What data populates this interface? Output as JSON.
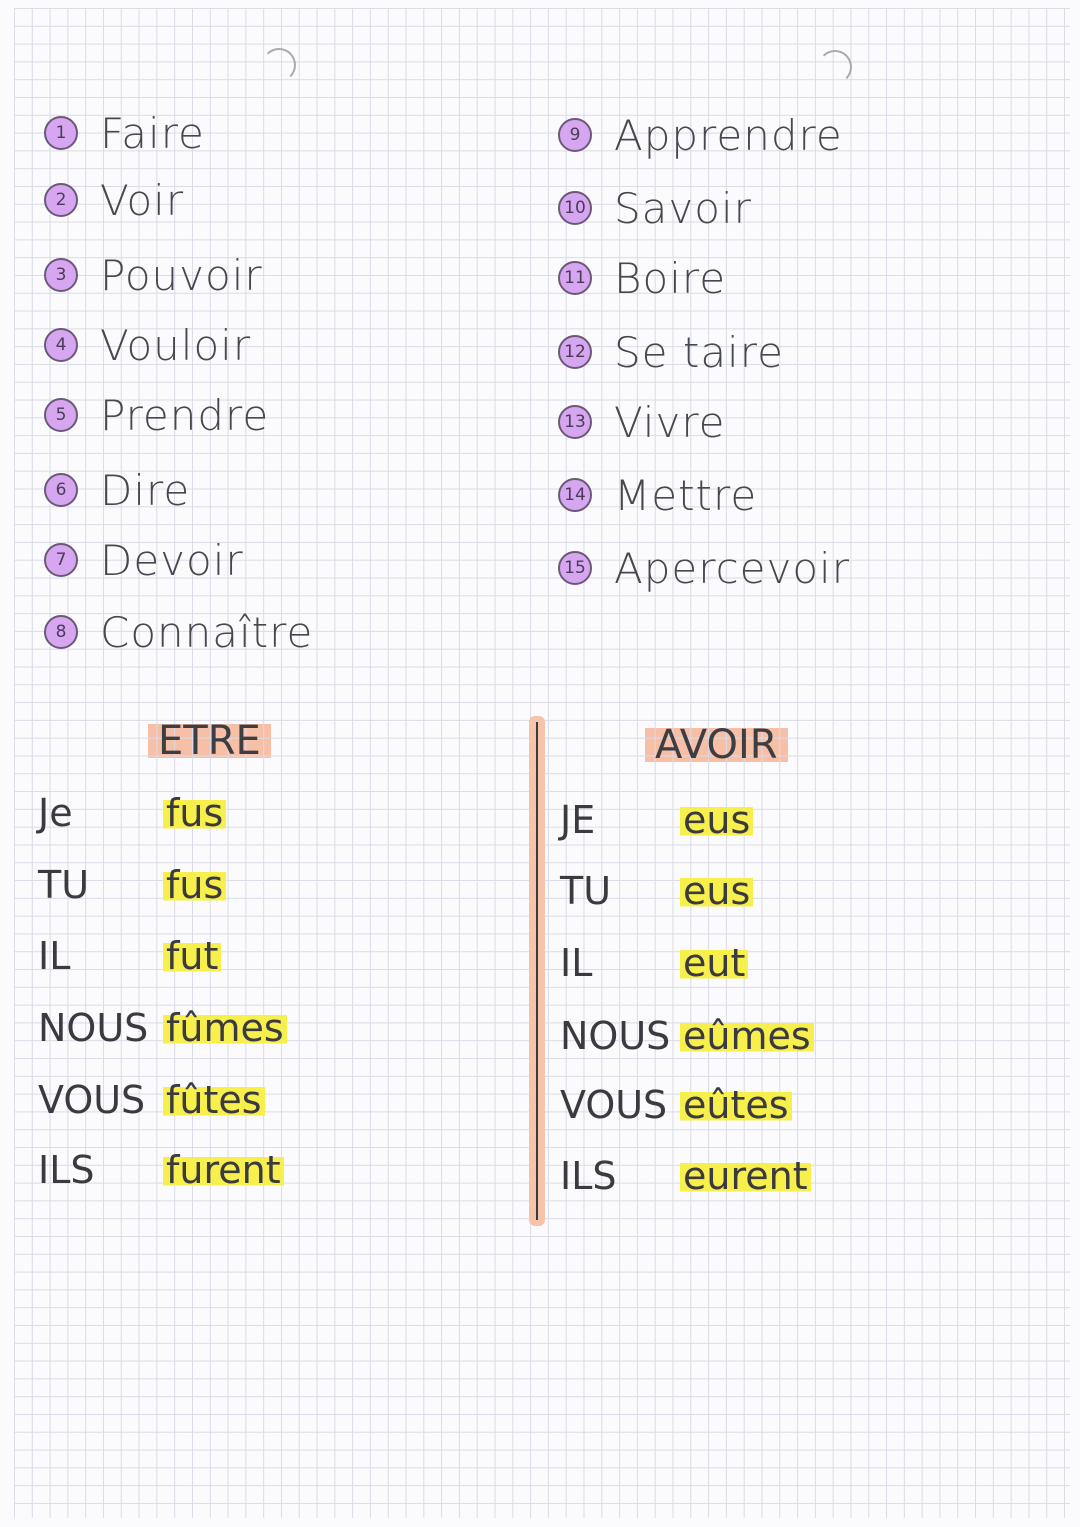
{
  "verbs_left": [
    {
      "n": "1",
      "w": "Faire"
    },
    {
      "n": "2",
      "w": "Voir"
    },
    {
      "n": "3",
      "w": "Pouvoir"
    },
    {
      "n": "4",
      "w": "Vouloir"
    },
    {
      "n": "5",
      "w": "Prendre"
    },
    {
      "n": "6",
      "w": "Dire"
    },
    {
      "n": "7",
      "w": "Devoir"
    },
    {
      "n": "8",
      "w": "Connaître"
    }
  ],
  "verbs_right": [
    {
      "n": "9",
      "w": "Apprendre"
    },
    {
      "n": "10",
      "w": "Savoir"
    },
    {
      "n": "11",
      "w": "Boire"
    },
    {
      "n": "12",
      "w": "Se taire"
    },
    {
      "n": "13",
      "w": "Vivre"
    },
    {
      "n": "14",
      "w": "Mettre"
    },
    {
      "n": "15",
      "w": "Apercevoir"
    }
  ],
  "etre": {
    "title": "ETRE",
    "rows": [
      {
        "p": "Je",
        "v": "fus"
      },
      {
        "p": "TU",
        "v": "fus"
      },
      {
        "p": "IL",
        "v": "fut"
      },
      {
        "p": "NOUS",
        "v": "fûmes"
      },
      {
        "p": "VOUS",
        "v": "fûtes"
      },
      {
        "p": "ILS",
        "v": "furent"
      }
    ]
  },
  "avoir": {
    "title": "AVOIR",
    "rows": [
      {
        "p": "JE",
        "v": "eus"
      },
      {
        "p": "TU",
        "v": "eus"
      },
      {
        "p": "IL",
        "v": "eut"
      },
      {
        "p": "NOUS",
        "v": "eûmes"
      },
      {
        "p": "VOUS",
        "v": "eûtes"
      },
      {
        "p": "ILS",
        "v": "eurent"
      }
    ]
  },
  "colors": {
    "circle": "#d7a6f0",
    "header_highlight": "#f7c0a6",
    "verb_highlight": "#f6ef4c"
  }
}
